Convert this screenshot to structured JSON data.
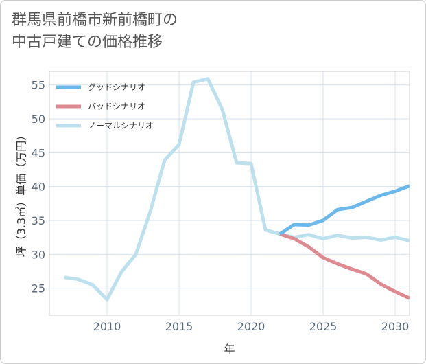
{
  "title_lines": [
    "群馬県前橋市新前橋町の",
    "中古戸建ての価格推移"
  ],
  "chart_data": {
    "type": "line",
    "title": "群馬県前橋市新前橋町の中古戸建ての価格推移",
    "xlabel": "年",
    "ylabel": "坪（3.3㎡）単価（万円）",
    "xlim": [
      2006,
      2031
    ],
    "ylim": [
      21,
      57
    ],
    "xticks": [
      2010,
      2015,
      2020,
      2025,
      2030
    ],
    "yticks": [
      25,
      30,
      35,
      40,
      45,
      50,
      55
    ],
    "grid": true,
    "legend_position": "top-left",
    "series": [
      {
        "name": "グッドシナリオ",
        "color": "#6bb8ea",
        "x": [
          2022,
          2023,
          2024,
          2025,
          2026,
          2027,
          2028,
          2029,
          2030,
          2031
        ],
        "y": [
          33.0,
          34.4,
          34.3,
          35.0,
          36.6,
          36.9,
          37.8,
          38.7,
          39.3,
          40.1
        ]
      },
      {
        "name": "バッドシナリオ",
        "color": "#df8990",
        "x": [
          2022,
          2023,
          2024,
          2025,
          2026,
          2027,
          2028,
          2029,
          2030,
          2031
        ],
        "y": [
          33.0,
          32.3,
          31.1,
          29.5,
          28.6,
          27.8,
          27.1,
          25.6,
          24.5,
          23.5
        ]
      },
      {
        "name": "ノーマルシナリオ",
        "color": "#bde0ee",
        "x": [
          2007,
          2008,
          2009,
          2010,
          2011,
          2012,
          2013,
          2014,
          2015,
          2016,
          2017,
          2018,
          2019,
          2020,
          2021,
          2022,
          2023,
          2024,
          2025,
          2026,
          2027,
          2028,
          2029,
          2030,
          2031
        ],
        "y": [
          26.6,
          26.3,
          25.5,
          23.3,
          27.4,
          30.0,
          36.3,
          43.9,
          46.2,
          55.4,
          55.9,
          51.4,
          43.5,
          43.4,
          33.6,
          33.0,
          32.5,
          32.9,
          32.3,
          32.8,
          32.4,
          32.5,
          32.1,
          32.5,
          32.0
        ]
      }
    ]
  }
}
